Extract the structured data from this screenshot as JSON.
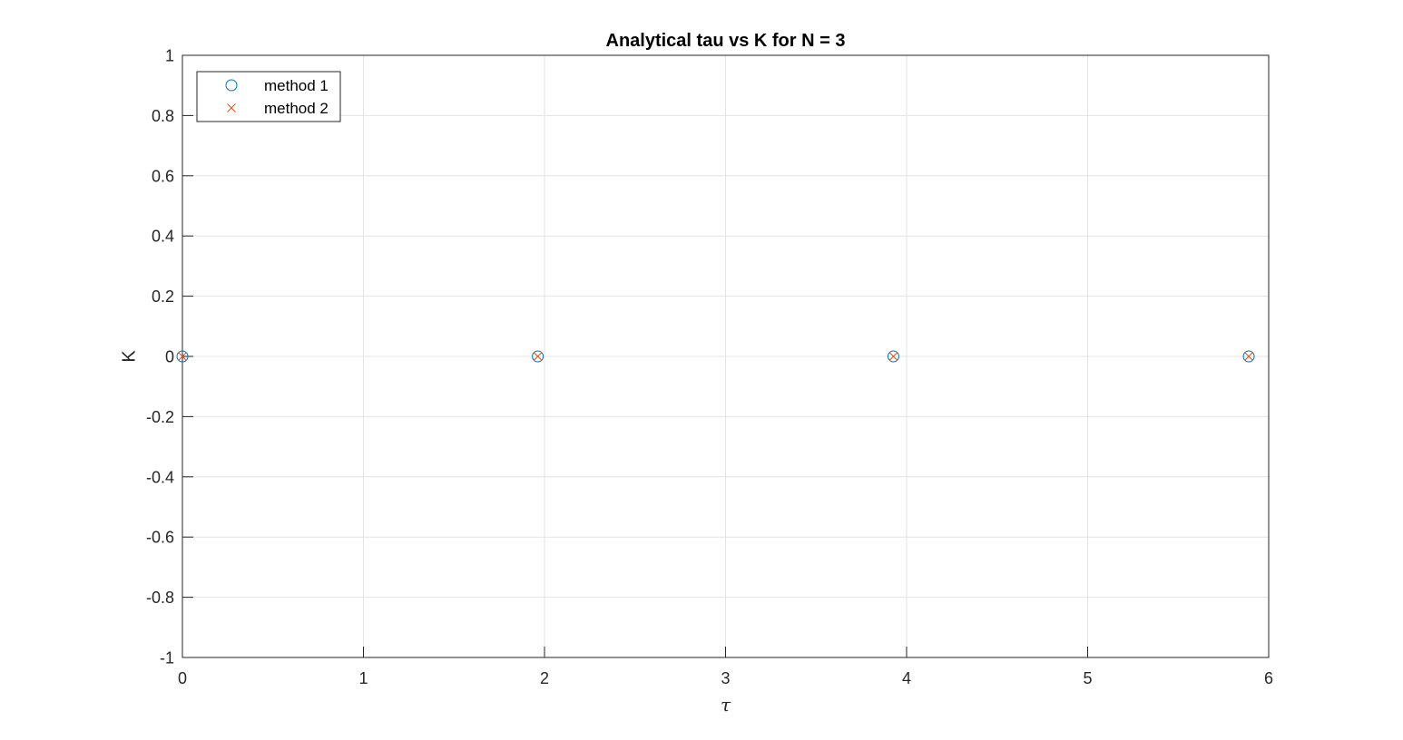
{
  "chart_data": {
    "type": "scatter",
    "title": "Analytical tau vs K for N = 3",
    "xlabel": "τ",
    "ylabel": "K",
    "xlim": [
      0,
      6
    ],
    "ylim": [
      -1,
      1
    ],
    "xticks": [
      0,
      1,
      2,
      3,
      4,
      5,
      6
    ],
    "yticks": [
      -1,
      -0.8,
      -0.6,
      -0.4,
      -0.2,
      0,
      0.2,
      0.4,
      0.6,
      0.8,
      1
    ],
    "xtick_labels": [
      "0",
      "1",
      "2",
      "3",
      "4",
      "5",
      "6"
    ],
    "ytick_labels": [
      "-1",
      "-0.8",
      "-0.6",
      "-0.4",
      "-0.2",
      "0",
      "0.2",
      "0.4",
      "0.6",
      "0.8",
      "1"
    ],
    "grid": true,
    "legend_position": "top-left",
    "series": [
      {
        "name": "method 1",
        "marker": "circle",
        "color": "#0072BD",
        "x": [
          0,
          1.963,
          3.927,
          5.89
        ],
        "y": [
          0,
          0,
          0,
          0
        ]
      },
      {
        "name": "method 2",
        "marker": "x",
        "color": "#D95319",
        "x": [
          0,
          1.963,
          3.927,
          5.89
        ],
        "y": [
          0,
          0,
          0,
          0
        ]
      }
    ]
  }
}
